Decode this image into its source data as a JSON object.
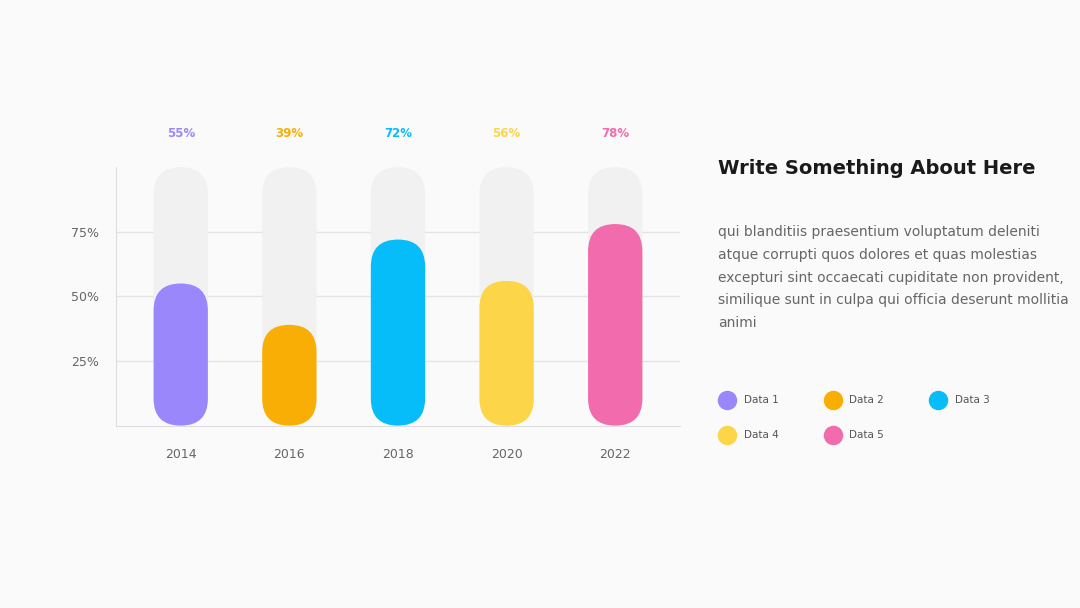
{
  "chart_data": {
    "type": "bar",
    "title": "Write Something About Here",
    "subtitle": "qui blanditiis praesentium voluptatum deleniti atque corrupti quos dolores et quas molestias excepturi sint occaecati cupiditate non provident, similique sunt in culpa qui officia deserunt mollitia animi",
    "categories": [
      "2014",
      "2016",
      "2018",
      "2020",
      "2022"
    ],
    "series": [
      {
        "name": "Data 1",
        "color": "#9b87fc",
        "values": [
          55,
          null,
          null,
          null,
          null
        ],
        "value_labels": [
          "55%",
          null,
          null,
          null,
          null
        ]
      },
      {
        "name": "Data 2",
        "color": "#f9ae06",
        "values": [
          null,
          39,
          null,
          null,
          null
        ],
        "value_labels": [
          null,
          "39%",
          null,
          null,
          null
        ]
      },
      {
        "name": "Data 3",
        "color": "#06bdf9",
        "values": [
          null,
          null,
          72,
          null,
          null
        ],
        "value_labels": [
          null,
          null,
          "72%",
          null,
          null
        ]
      },
      {
        "name": "Data 4",
        "color": "#fdd549",
        "values": [
          null,
          null,
          null,
          56,
          null
        ],
        "value_labels": [
          null,
          null,
          null,
          "56%",
          null
        ]
      },
      {
        "name": "Data 5",
        "color": "#f16bad",
        "values": [
          null,
          null,
          null,
          null,
          78
        ],
        "value_labels": [
          null,
          null,
          null,
          null,
          "78%"
        ]
      }
    ],
    "ylim": [
      0,
      100
    ],
    "yticks": [
      {
        "value": 25,
        "label": "25%"
      },
      {
        "value": 50,
        "label": "50%"
      },
      {
        "value": 75,
        "label": "75%"
      }
    ],
    "grid": true,
    "data_labels": true,
    "legend": "right"
  }
}
